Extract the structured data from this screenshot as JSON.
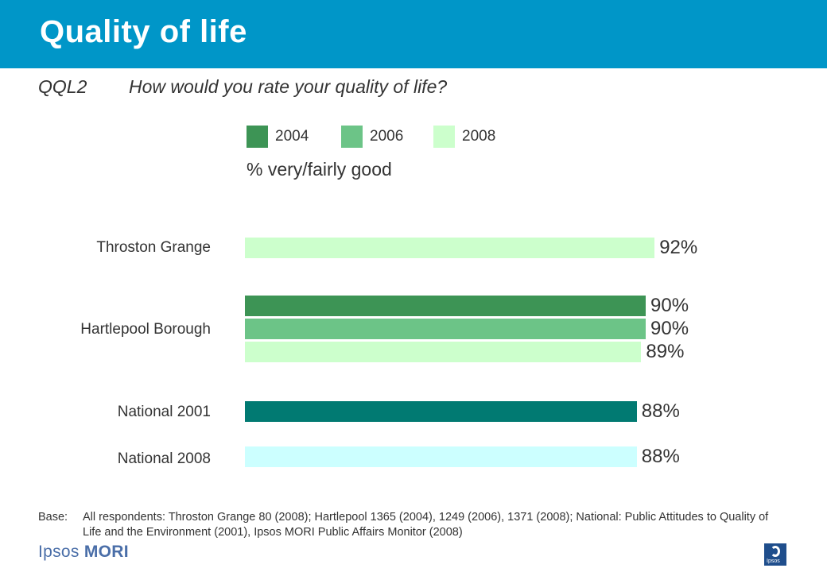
{
  "header": {
    "title": "Quality of life"
  },
  "question": {
    "code": "QQL2",
    "text": "How would you rate your quality of life?"
  },
  "colors": {
    "header_bg": "#0096c8",
    "y2004": "#3d9455",
    "y2006": "#6cc487",
    "y2008": "#ccffcc",
    "national2001": "#017a72",
    "national2008": "#ccffff"
  },
  "chart_data": {
    "type": "bar",
    "orientation": "horizontal",
    "subtitle": "% very/fairly good",
    "legend": [
      {
        "label": "2004",
        "color": "#3d9455"
      },
      {
        "label": "2006",
        "color": "#6cc487"
      },
      {
        "label": "2008",
        "color": "#ccffcc"
      }
    ],
    "legend_placement": "top",
    "groups": [
      {
        "category": "Throston Grange",
        "bars": [
          {
            "series": "2008",
            "value": 92,
            "label": "92%",
            "color": "#ccffcc"
          }
        ]
      },
      {
        "category": "Hartlepool Borough",
        "bars": [
          {
            "series": "2004",
            "value": 90,
            "label": "90%",
            "color": "#3d9455"
          },
          {
            "series": "2006",
            "value": 90,
            "label": "90%",
            "color": "#6cc487"
          },
          {
            "series": "2008",
            "value": 89,
            "label": "89%",
            "color": "#ccffcc"
          }
        ]
      },
      {
        "category": "National 2001",
        "bars": [
          {
            "series": "National 2001",
            "value": 88,
            "label": "88%",
            "color": "#017a72"
          }
        ]
      },
      {
        "category": "National 2008",
        "bars": [
          {
            "series": "National 2008",
            "value": 88,
            "label": "88%",
            "color": "#ccffff"
          }
        ]
      }
    ],
    "xlim": [
      0,
      100
    ],
    "grid": false
  },
  "footer": {
    "base_label": "Base:",
    "base_text": "All respondents: Throston Grange 80 (2008); Hartlepool 1365 (2004), 1249 (2006), 1371 (2008); National: Public Attitudes to Quality of Life and the Environment (2001), Ipsos MORI Public Affairs Monitor (2008)"
  },
  "logo": {
    "part1": "Ipsos",
    "part2": "MORI"
  },
  "badge": {
    "text": "Ipsos"
  }
}
